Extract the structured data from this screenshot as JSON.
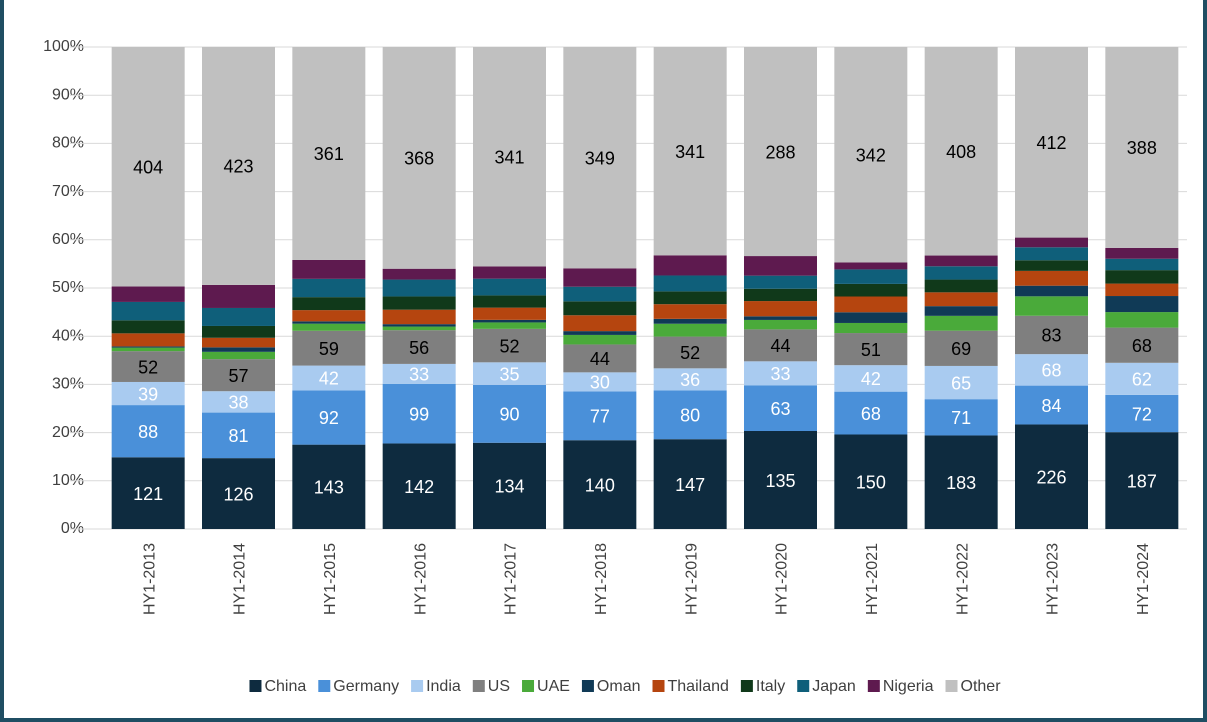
{
  "chart_data": {
    "type": "bar",
    "stacking": "percent",
    "categories": [
      "HY1-2013",
      "HY1-2014",
      "HY1-2015",
      "HY1-2016",
      "HY1-2017",
      "HY1-2018",
      "HY1-2019",
      "HY1-2020",
      "HY1-2021",
      "HY1-2022",
      "HY1-2023",
      "HY1-2024"
    ],
    "series": [
      {
        "name": "China",
        "color": "#0e2b3f",
        "data_labels": true,
        "label_color": "#ffffff",
        "values": [
          121,
          126,
          143,
          142,
          134,
          140,
          147,
          135,
          150,
          183,
          226,
          187
        ]
      },
      {
        "name": "Germany",
        "color": "#4a90d9",
        "data_labels": true,
        "label_color": "#ffffff",
        "values": [
          88,
          81,
          92,
          99,
          90,
          77,
          80,
          63,
          68,
          71,
          84,
          72
        ]
      },
      {
        "name": "India",
        "color": "#a9cbf0",
        "data_labels": true,
        "label_color": "#ffffff",
        "values": [
          39,
          38,
          42,
          33,
          35,
          30,
          36,
          33,
          42,
          65,
          68,
          62
        ]
      },
      {
        "name": "US",
        "color": "#7f7f7f",
        "data_labels": true,
        "label_color": "#000000",
        "values": [
          52,
          57,
          59,
          56,
          52,
          44,
          52,
          44,
          51,
          69,
          83,
          68
        ]
      },
      {
        "name": "UAE",
        "color": "#4aaa3a",
        "data_labels": false,
        "values": [
          6,
          13,
          12,
          6,
          10,
          15,
          21,
          13,
          16,
          29,
          42,
          30
        ]
      },
      {
        "name": "Oman",
        "color": "#103a56",
        "data_labels": false,
        "values": [
          2,
          8,
          4,
          4,
          4,
          6,
          8,
          5,
          17,
          19,
          23,
          31
        ]
      },
      {
        "name": "Thailand",
        "color": "#b5450f",
        "data_labels": false,
        "values": [
          22,
          17,
          19,
          24,
          19,
          25,
          24,
          21,
          25,
          27,
          32,
          24
        ]
      },
      {
        "name": "Italy",
        "color": "#10391a",
        "data_labels": false,
        "values": [
          22,
          21,
          22,
          22,
          19,
          22,
          21,
          17,
          20,
          25,
          23,
          26
        ]
      },
      {
        "name": "Japan",
        "color": "#0f5f7a",
        "data_labels": false,
        "values": [
          31,
          32,
          31,
          28,
          26,
          23,
          26,
          18,
          23,
          26,
          28,
          22
        ]
      },
      {
        "name": "Nigeria",
        "color": "#5e1a4f",
        "data_labels": false,
        "values": [
          26,
          41,
          32,
          18,
          19,
          29,
          33,
          27,
          11,
          21,
          21,
          21
        ]
      },
      {
        "name": "Other",
        "color": "#c0c0c0",
        "data_labels": true,
        "label_color": "#000000",
        "values": [
          404,
          423,
          361,
          368,
          341,
          349,
          341,
          288,
          342,
          408,
          412,
          388
        ]
      }
    ],
    "ylim": [
      0,
      100
    ],
    "yticks": [
      {
        "value": 0,
        "label": "0%"
      },
      {
        "value": 10,
        "label": "10%"
      },
      {
        "value": 20,
        "label": "20%"
      },
      {
        "value": 30,
        "label": "30%"
      },
      {
        "value": 40,
        "label": "40%"
      },
      {
        "value": 50,
        "label": "50%"
      },
      {
        "value": 60,
        "label": "60%"
      },
      {
        "value": 70,
        "label": "70%"
      },
      {
        "value": 80,
        "label": "80%"
      },
      {
        "value": 90,
        "label": "90%"
      },
      {
        "value": 100,
        "label": "100%"
      }
    ],
    "grid": true,
    "legend": "bottom"
  }
}
